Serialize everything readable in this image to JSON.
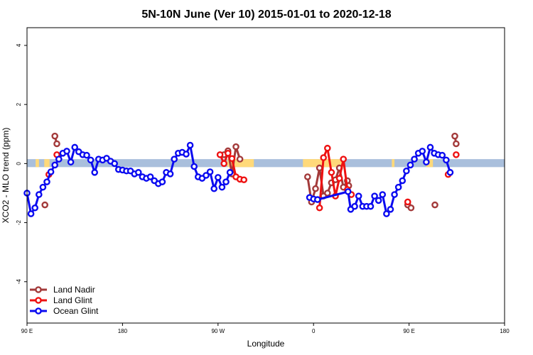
{
  "chart_data": {
    "type": "line",
    "title": "5N-10N June (Ver 10)   2015-01-01 to 2020-12-18",
    "xlabel": "Longitude",
    "ylabel": "XCO2 - MLO trend (ppm)",
    "xlim": [
      -90,
      270
    ],
    "ylim": [
      -5.4,
      4.6
    ],
    "x_ticks": [
      -90,
      -18,
      54,
      126,
      198,
      270
    ],
    "x_tick_labels": [
      "90 E",
      "180",
      "90 W",
      "0",
      "90 E",
      "180"
    ],
    "y_ticks": [
      -4,
      -2,
      0,
      2,
      4
    ],
    "y_tick_labels": [
      "-4",
      "-2",
      "0",
      "2",
      "4"
    ],
    "band": {
      "y_min": -0.12,
      "y_max": 0.15,
      "color": "#a9bfdc"
    },
    "land_bands": [
      {
        "from": -83.5,
        "to": -81,
        "color": "#ffd97a"
      },
      {
        "from": -77,
        "to": -73,
        "color": "#ffd97a"
      },
      {
        "from": 61,
        "to": 81,
        "color": "#ffd97a"
      },
      {
        "from": 118,
        "to": 149,
        "color": "#ffd97a"
      },
      {
        "from": 185,
        "to": 187,
        "color": "#ffd97a"
      },
      {
        "from": 211,
        "to": 216,
        "color": "#ffd97a"
      }
    ],
    "series": [
      {
        "name": "Land Nadir",
        "color": "#a33a3a",
        "segments": [
          [
            [
              -76.5,
              -1.4
            ]
          ],
          [
            [
              -69,
              0.93
            ],
            [
              -67.5,
              0.67
            ]
          ],
          [
            [
              58.5,
              0.3
            ],
            [
              61.5,
              0.43
            ],
            [
              64.5,
              -0.35
            ],
            [
              67.5,
              0.57
            ],
            [
              70.5,
              0.15
            ]
          ],
          [
            [
              121.5,
              -0.45
            ],
            [
              124.5,
              -1.3
            ],
            [
              127.5,
              -0.85
            ],
            [
              130.5,
              -0.15
            ],
            [
              133.5,
              -1.1
            ],
            [
              136.5,
              -1.0
            ],
            [
              139.5,
              -0.65
            ],
            [
              142.5,
              -0.55
            ],
            [
              145.5,
              -0.15
            ],
            [
              148.5,
              -0.8
            ],
            [
              151.5,
              -0.58
            ],
            [
              152.5,
              -0.75
            ]
          ],
          [
            [
              197,
              -1.4
            ],
            [
              199.5,
              -1.5
            ]
          ],
          [
            [
              217.5,
              -1.4
            ]
          ],
          [
            [
              232.5,
              0.93
            ],
            [
              233.5,
              0.67
            ]
          ]
        ]
      },
      {
        "name": "Land Glint",
        "color": "#ee1111",
        "segments": [
          [
            [
              -73.5,
              -0.37
            ]
          ],
          [
            [
              -67.5,
              0.3
            ]
          ],
          [
            [
              55.5,
              0.3
            ],
            [
              58.5,
              0.0
            ],
            [
              61.5,
              0.35
            ],
            [
              64.5,
              0.17
            ],
            [
              67.5,
              -0.45
            ],
            [
              70.5,
              -0.53
            ],
            [
              73.5,
              -0.55
            ]
          ],
          [
            [
              130.5,
              -1.5
            ],
            [
              133.5,
              0.2
            ],
            [
              136.5,
              0.52
            ],
            [
              139.5,
              -0.3
            ],
            [
              142.5,
              -1.1
            ],
            [
              145.5,
              -0.5
            ],
            [
              148.5,
              0.15
            ],
            [
              151.5,
              -0.88
            ],
            [
              154.5,
              -1.05
            ]
          ],
          [
            [
              197,
              -1.3
            ]
          ],
          [
            [
              227.5,
              -0.37
            ]
          ],
          [
            [
              233.5,
              0.3
            ]
          ]
        ]
      },
      {
        "name": "Ocean Glint",
        "color": "#0a0af0",
        "segments": [
          [
            [
              -90,
              -1.0
            ],
            [
              -87,
              -1.7
            ],
            [
              -84,
              -1.5
            ],
            [
              -81,
              -1.05
            ],
            [
              -78,
              -0.8
            ],
            [
              -75,
              -0.62
            ],
            [
              -72,
              -0.28
            ],
            [
              -69,
              -0.05
            ],
            [
              -66,
              0.15
            ],
            [
              -63,
              0.35
            ],
            [
              -60,
              0.42
            ],
            [
              -57,
              0.05
            ],
            [
              -54,
              0.55
            ],
            [
              -51,
              0.4
            ],
            [
              -48,
              0.3
            ],
            [
              -45,
              0.28
            ],
            [
              -42,
              0.12
            ],
            [
              -39,
              -0.3
            ],
            [
              -36,
              0.15
            ],
            [
              -33,
              0.12
            ],
            [
              -30,
              0.18
            ],
            [
              -27,
              0.08
            ],
            [
              -24,
              0.0
            ],
            [
              -21,
              -0.2
            ],
            [
              -18,
              -0.22
            ],
            [
              -15,
              -0.25
            ],
            [
              -12,
              -0.25
            ],
            [
              -9,
              -0.35
            ],
            [
              -6,
              -0.3
            ],
            [
              -3,
              -0.45
            ],
            [
              0,
              -0.5
            ],
            [
              3,
              -0.45
            ],
            [
              6,
              -0.58
            ],
            [
              9,
              -0.68
            ],
            [
              12,
              -0.62
            ],
            [
              15,
              -0.3
            ],
            [
              18,
              -0.35
            ],
            [
              21,
              0.15
            ],
            [
              24,
              0.35
            ],
            [
              27,
              0.38
            ],
            [
              30,
              0.32
            ],
            [
              33,
              0.62
            ],
            [
              36,
              -0.1
            ],
            [
              39,
              -0.45
            ],
            [
              42,
              -0.5
            ],
            [
              45,
              -0.4
            ],
            [
              48,
              -0.28
            ],
            [
              51,
              -0.85
            ],
            [
              54,
              -0.47
            ],
            [
              57,
              -0.8
            ],
            [
              60,
              -0.62
            ],
            [
              63,
              -0.3
            ]
          ],
          [
            [
              123,
              -1.15
            ],
            [
              126,
              -1.2
            ],
            [
              129,
              -1.22
            ],
            [
              152,
              -0.95
            ],
            [
              154,
              -1.55
            ],
            [
              157,
              -1.45
            ],
            [
              160,
              -1.1
            ],
            [
              163,
              -1.45
            ],
            [
              166,
              -1.45
            ],
            [
              169,
              -1.45
            ],
            [
              172,
              -1.1
            ],
            [
              175,
              -1.25
            ],
            [
              178,
              -1.05
            ],
            [
              181,
              -1.7
            ],
            [
              184,
              -1.55
            ],
            [
              187,
              -1.05
            ],
            [
              190,
              -0.8
            ],
            [
              193,
              -0.58
            ],
            [
              196,
              -0.25
            ],
            [
              199,
              -0.05
            ],
            [
              202,
              0.15
            ],
            [
              205,
              0.35
            ],
            [
              208,
              0.42
            ],
            [
              211,
              0.05
            ],
            [
              214,
              0.55
            ],
            [
              217,
              0.35
            ],
            [
              220,
              0.3
            ],
            [
              223,
              0.28
            ],
            [
              226,
              0.12
            ],
            [
              229,
              -0.3
            ]
          ]
        ]
      }
    ],
    "legend_position": "bottom-left"
  }
}
